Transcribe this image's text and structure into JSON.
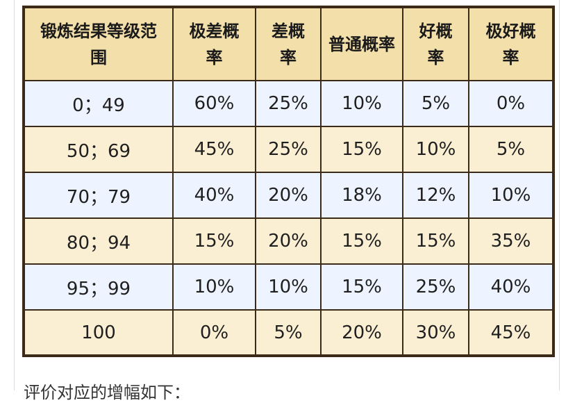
{
  "table": {
    "headers": [
      "锻炼结果等级范围",
      "极差概率",
      "差概率",
      "普通概率",
      "好概率",
      "极好概率"
    ],
    "rows": [
      [
        "0；49",
        "60%",
        "25%",
        "10%",
        "5%",
        "0%"
      ],
      [
        "50；69",
        "45%",
        "25%",
        "15%",
        "10%",
        "5%"
      ],
      [
        "70；79",
        "40%",
        "20%",
        "18%",
        "12%",
        "10%"
      ],
      [
        "80；94",
        "15%",
        "20%",
        "15%",
        "15%",
        "35%"
      ],
      [
        "95；99",
        "10%",
        "10%",
        "15%",
        "25%",
        "40%"
      ],
      [
        "100",
        "0%",
        "5%",
        "20%",
        "30%",
        "45%"
      ]
    ]
  },
  "caption": "评价对应的增幅如下："
}
